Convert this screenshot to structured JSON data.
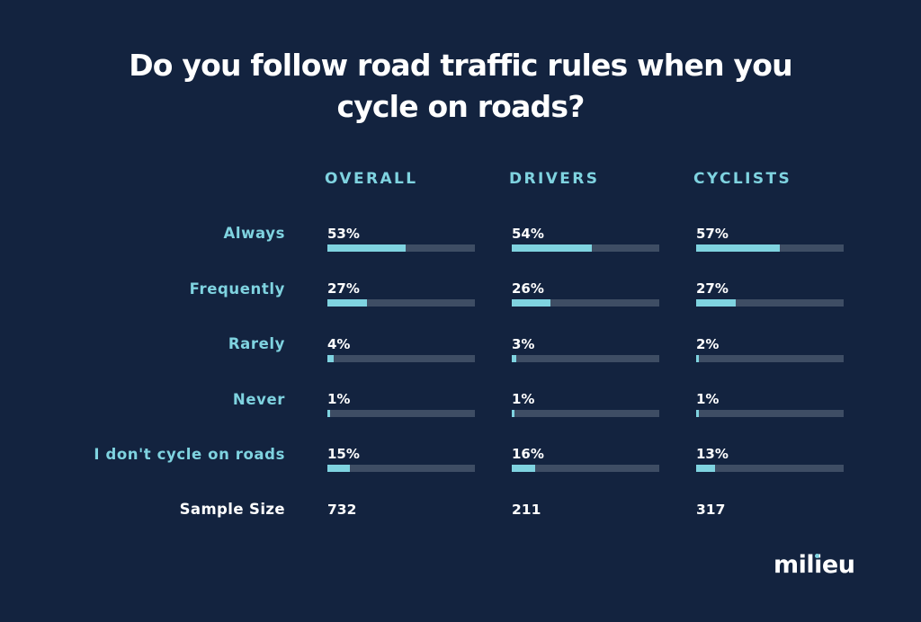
{
  "title": {
    "line1": "Do you follow road traffic rules when you",
    "line2": "cycle on roads?"
  },
  "chart_data": {
    "type": "bar",
    "title": "Do you follow road traffic rules when you cycle on roads?",
    "categories": [
      "Always",
      "Frequently",
      "Rarely",
      "Never",
      "I don't cycle on roads"
    ],
    "ylim": [
      0,
      100
    ],
    "series": [
      {
        "name": "OVERALL",
        "values": [
          53,
          27,
          4,
          1,
          15
        ],
        "labels": [
          "53%",
          "27%",
          "4%",
          "1%",
          "15%"
        ]
      },
      {
        "name": "DRIVERS",
        "values": [
          54,
          26,
          3,
          1,
          16
        ],
        "labels": [
          "54%",
          "26%",
          "3%",
          "1%",
          "16%"
        ]
      },
      {
        "name": "CYCLISTS",
        "values": [
          57,
          27,
          2,
          1,
          13
        ],
        "labels": [
          "57%",
          "27%",
          "2%",
          "1%",
          "13%"
        ]
      }
    ],
    "sample_size": {
      "label": "Sample Size",
      "values": [
        "732",
        "211",
        "317"
      ]
    }
  },
  "colors": {
    "background": "#13233f",
    "accent": "#7fd3e0",
    "track": "#3e4d64",
    "text": "#ffffff"
  },
  "logo": {
    "text": "milieu"
  }
}
